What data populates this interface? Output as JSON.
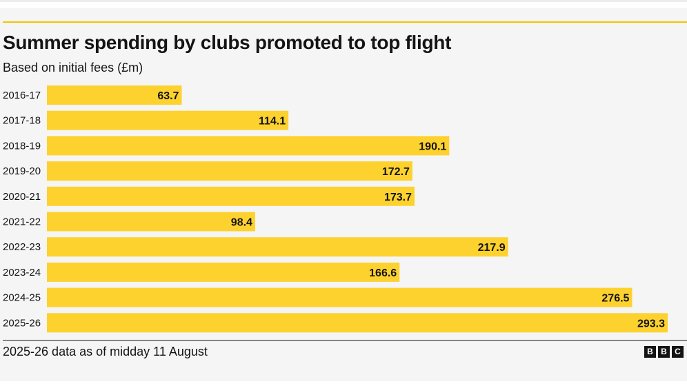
{
  "title": "Summer spending by clubs promoted to top flight",
  "subtitle": "Based on initial fees (£m)",
  "footnote": "2025-26 data as of midday 11 August",
  "logo": [
    "B",
    "B",
    "C"
  ],
  "colors": {
    "bar": "#fdd22f",
    "accent": "#f2c400",
    "text": "#141414",
    "background": "#f5f5f5"
  },
  "chart_data": {
    "type": "bar",
    "orientation": "horizontal",
    "categories": [
      "2016-17",
      "2017-18",
      "2018-19",
      "2019-20",
      "2020-21",
      "2021-22",
      "2022-23",
      "2023-24",
      "2024-25",
      "2025-26"
    ],
    "values": [
      63.7,
      114.1,
      190.1,
      172.7,
      173.7,
      98.4,
      217.9,
      166.6,
      276.5,
      293.3
    ],
    "value_labels": [
      "63.7",
      "114.1",
      "190.1",
      "172.7",
      "173.7",
      "98.4",
      "217.9",
      "166.6",
      "276.5",
      "293.3"
    ],
    "xlim": [
      0,
      293.3
    ],
    "grid": false,
    "legend": "none"
  }
}
